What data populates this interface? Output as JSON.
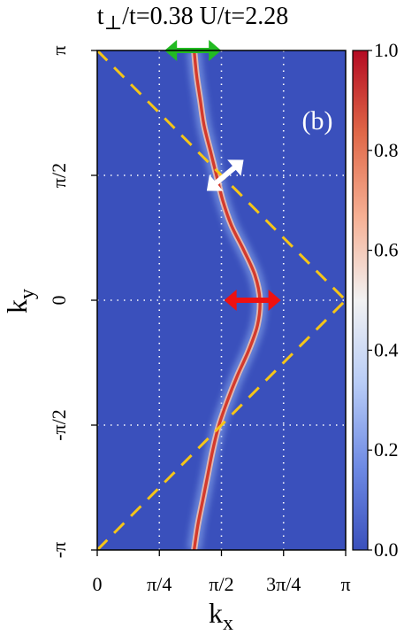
{
  "chart_data": {
    "type": "heatmap",
    "title": "t⊥/t=0.38  U/t=2.28",
    "title_parts": {
      "t_main": "t",
      "t_sub": "⊥",
      "t_rest": "/t=0.38  U/t=2.28"
    },
    "panel_label": "(b)",
    "xlabel": {
      "main": "k",
      "sub": "x"
    },
    "ylabel": {
      "main": "k",
      "sub": "y"
    },
    "xlim": [
      0,
      1
    ],
    "ylim": [
      -1,
      1
    ],
    "axis_units": "pi",
    "x_ticks": [
      {
        "value": 0,
        "label": "0"
      },
      {
        "value": 0.25,
        "label": "π/4"
      },
      {
        "value": 0.5,
        "label": "π/2"
      },
      {
        "value": 0.75,
        "label": "3π/4"
      },
      {
        "value": 1,
        "label": "π"
      }
    ],
    "y_ticks": [
      {
        "value": 1,
        "label": "π"
      },
      {
        "value": 0.5,
        "label": "π/2"
      },
      {
        "value": 0,
        "label": "0"
      },
      {
        "value": -0.5,
        "label": "-π/2"
      },
      {
        "value": -1,
        "label": "-π"
      }
    ],
    "colorbar": {
      "range": [
        0,
        1
      ],
      "ticks": [
        {
          "value": 1.0,
          "label": "1.0"
        },
        {
          "value": 0.8,
          "label": "0.8"
        },
        {
          "value": 0.6,
          "label": "0.6"
        },
        {
          "value": 0.4,
          "label": "0.4"
        },
        {
          "value": 0.2,
          "label": "0.2"
        },
        {
          "value": 0.0,
          "label": "0.0"
        }
      ],
      "colormap": [
        "#3a50bc",
        "#6e8ae4",
        "#b8ccf6",
        "#f2f2f2",
        "#f6b094",
        "#e06848",
        "#b40a22"
      ]
    },
    "fermi_surface_ridge": {
      "ky": [
        -1.0,
        -0.9,
        -0.8,
        -0.7,
        -0.6,
        -0.5,
        -0.4,
        -0.3,
        -0.2,
        -0.1,
        0.0,
        0.1,
        0.2,
        0.3,
        0.4,
        0.5,
        0.6,
        0.7,
        0.8,
        0.9,
        1.0
      ],
      "kx": [
        0.39,
        0.405,
        0.425,
        0.445,
        0.465,
        0.49,
        0.525,
        0.565,
        0.61,
        0.645,
        0.655,
        0.635,
        0.59,
        0.54,
        0.505,
        0.48,
        0.455,
        0.43,
        0.415,
        0.4,
        0.39
      ],
      "peak_intensity": 1.0
    },
    "dashed_lines": [
      {
        "color": "#f5c518",
        "points": [
          [
            0.0,
            1.0
          ],
          [
            1.0,
            0.0
          ]
        ]
      },
      {
        "color": "#f5c518",
        "points": [
          [
            0.0,
            -1.0
          ],
          [
            1.0,
            0.0
          ]
        ]
      }
    ],
    "dotted_grid": {
      "color": "#ffffff",
      "x": [
        0.25,
        0.5,
        0.75
      ],
      "y": [
        -0.5,
        0,
        0.5
      ]
    },
    "arrows": [
      {
        "color": "#22bb22",
        "center": [
          0.385,
          1.0
        ],
        "direction": "horizontal"
      },
      {
        "color": "#ffffff",
        "center": [
          0.515,
          0.5
        ],
        "direction": "diagonal"
      },
      {
        "color": "#ee1111",
        "center": [
          0.625,
          0.0
        ],
        "direction": "horizontal"
      }
    ],
    "background_color": "#3a50bc",
    "grid": true
  }
}
